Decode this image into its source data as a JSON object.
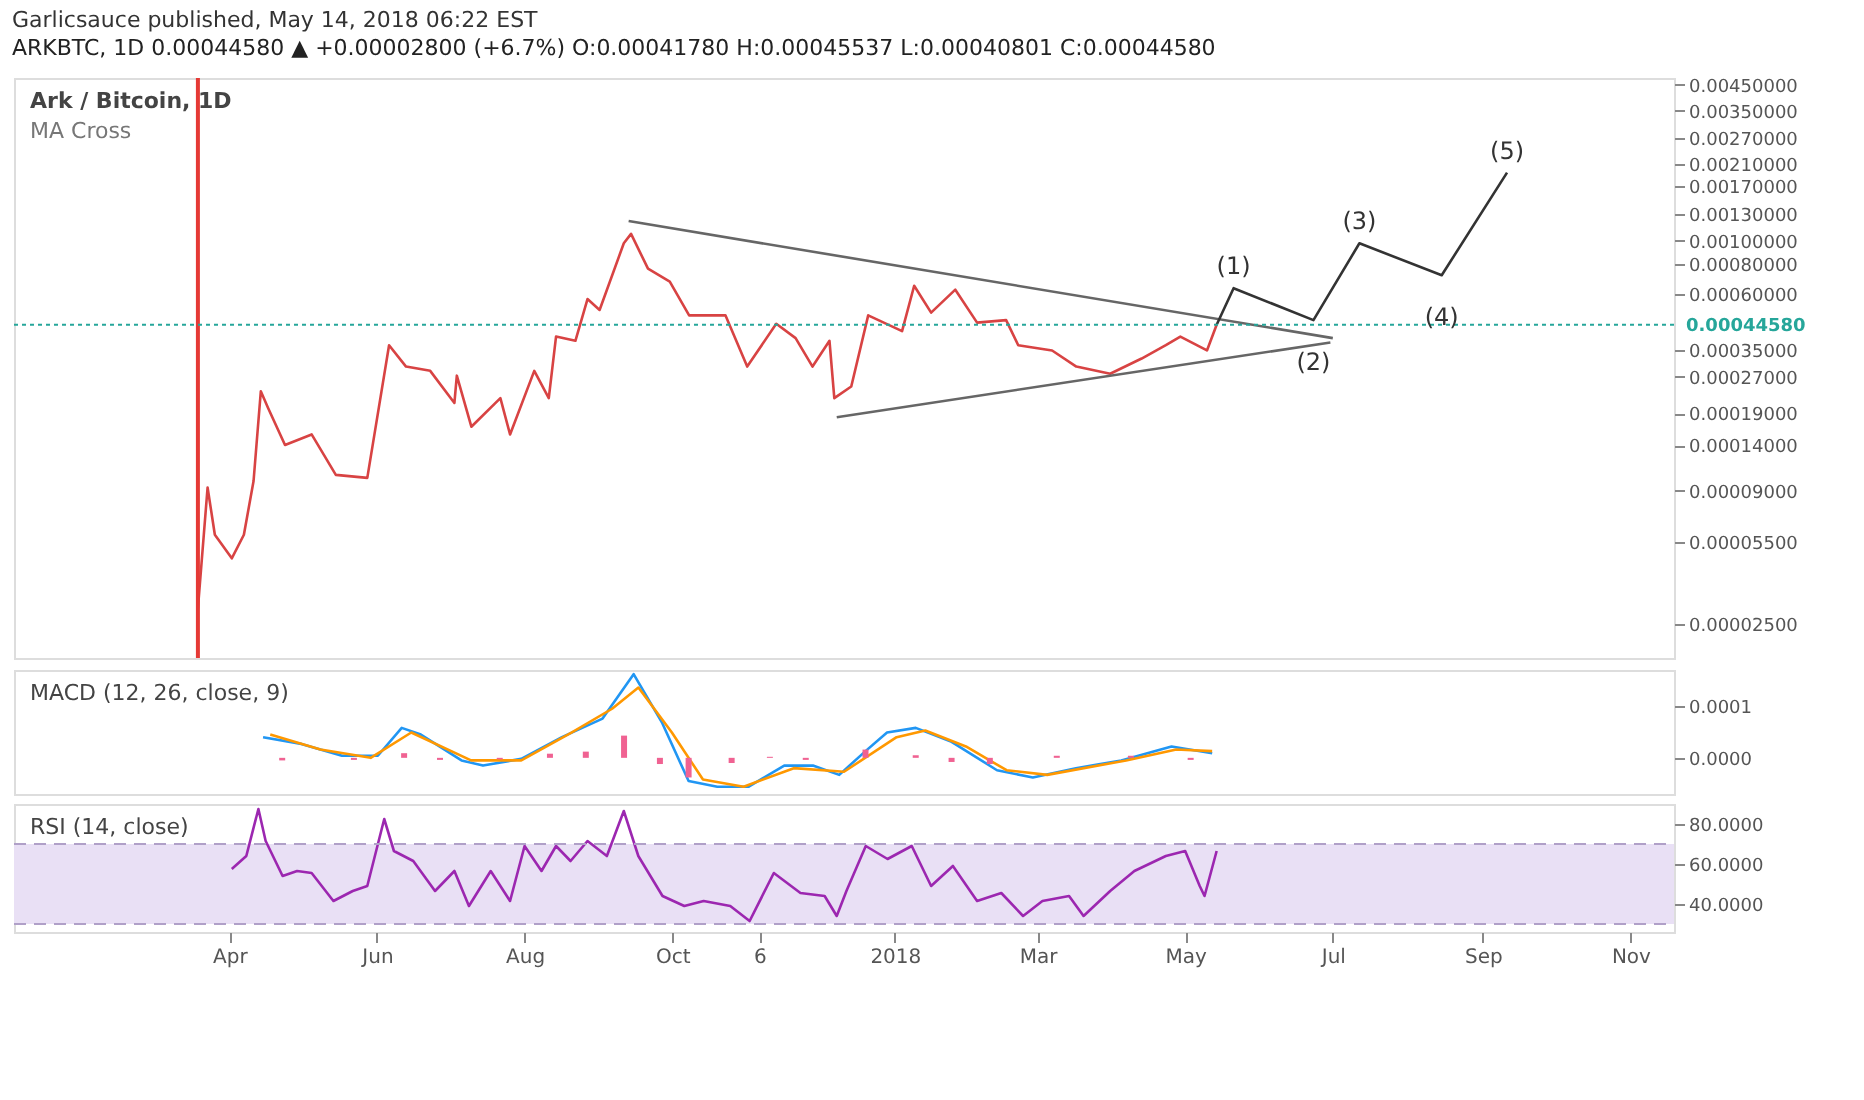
{
  "chart_data": [
    {
      "type": "line",
      "title": "Garlicsauce published, May 14, 2018 06:22 EST",
      "subtitle": "ARKBTC, 1D  0.00044580 ▲ +0.00002800 (+6.7%) O:0.00041780 H:0.00045537 L:0.00040801 C:0.00044580",
      "annotations": [
        "Ark / Bitcoin, 1D",
        "MA Cross",
        {
          "text": "(1)",
          "x": "2018-05-21",
          "y": 0.000634
        },
        {
          "text": "(2)",
          "x": "2018-06-23",
          "y": 0.000466
        },
        {
          "text": "(3)",
          "x": "2018-07-12",
          "y": 0.000977
        },
        {
          "text": "(4)",
          "x": "2018-08-15",
          "y": 0.000718
        },
        {
          "text": "(5)",
          "x": "2018-09-11",
          "y": 0.00193
        }
      ],
      "log": true,
      "tick_labels": "y",
      "xlim": [
        "2017-01-02",
        "2018-11-19"
      ],
      "ylim": [
        1.8e-05,
        0.0048
      ],
      "yticks": [
        {
          "value": 0.0045,
          "label": "0.00450000"
        },
        {
          "value": 0.0035,
          "label": "0.00350000"
        },
        {
          "value": 0.0027,
          "label": "0.00270000"
        },
        {
          "value": 0.0021,
          "label": "0.00210000"
        },
        {
          "value": 0.0017,
          "label": "0.00170000"
        },
        {
          "value": 0.0013,
          "label": "0.00130000"
        },
        {
          "value": 0.001,
          "label": "0.00100000"
        },
        {
          "value": 0.0008,
          "label": "0.00080000"
        },
        {
          "value": 0.0006,
          "label": "0.00060000"
        },
        {
          "value": 0.00035,
          "label": "0.00035000"
        },
        {
          "value": 0.00027,
          "label": "0.00027000"
        },
        {
          "value": 0.00019,
          "label": "0.00019000"
        },
        {
          "value": 0.00014,
          "label": "0.00014000"
        },
        {
          "value": 9e-05,
          "label": "0.00009000"
        },
        {
          "value": 5.5e-05,
          "label": "0.00005500"
        },
        {
          "value": 2.5e-05,
          "label": "0.00002500"
        }
      ],
      "ref_lines": [
        {
          "axis": "x",
          "value": "2017-03-19",
          "color": "#e53935"
        },
        {
          "axis": "y",
          "value": 0.0004458,
          "label": "0.00044580",
          "color": "#26a69a",
          "line_style": "dotted"
        }
      ],
      "series": [
        {
          "color": "#d84343",
          "x": [
            "2017-03-19",
            "2017-03-23",
            "2017-03-26",
            "2017-04-02",
            "2017-04-07",
            "2017-04-11",
            "2017-04-14",
            "2017-04-17",
            "2017-04-24",
            "2017-05-05",
            "2017-05-15",
            "2017-05-28",
            "2017-06-06",
            "2017-06-13",
            "2017-06-23",
            "2017-07-03",
            "2017-07-04",
            "2017-07-10",
            "2017-07-22",
            "2017-07-26",
            "2017-08-05",
            "2017-08-11",
            "2017-08-14",
            "2017-08-22",
            "2017-08-27",
            "2017-09-01",
            "2017-09-11",
            "2017-09-14",
            "2017-09-21",
            "2017-09-30",
            "2017-10-08",
            "2017-10-23",
            "2017-11-01",
            "2017-11-13",
            "2017-11-21",
            "2017-11-28",
            "2017-12-05",
            "2017-12-07",
            "2017-12-14",
            "2017-12-21",
            "2018-01-04",
            "2018-01-09",
            "2018-01-16",
            "2018-01-26",
            "2018-02-04",
            "2018-02-16",
            "2018-02-21",
            "2018-03-07",
            "2018-03-17",
            "2018-03-31",
            "2018-04-13",
            "2018-04-23",
            "2018-04-29",
            "2018-05-10",
            "2018-05-14"
          ],
          "values": [
            2.9e-05,
            9.3e-05,
            5.9e-05,
            4.7e-05,
            5.9e-05,
            9.9e-05,
            0.000235,
            0.0002,
            0.00014,
            0.000155,
            0.000105,
            0.000102,
            0.000366,
            0.000298,
            0.000286,
            0.00021,
            0.000273,
            0.000167,
            0.00022,
            0.000155,
            0.000286,
            0.00022,
            0.000398,
            0.000382,
            0.000571,
            0.000514,
            0.000977,
            0.00107,
            0.000765,
            0.000675,
            0.000488,
            0.000488,
            0.000298,
            0.00045,
            0.000392,
            0.000298,
            0.000382,
            0.00022,
            0.000246,
            0.000488,
            0.000419,
            0.000649,
            0.000501,
            0.000625,
            0.000455,
            0.000466,
            0.000366,
            0.000348,
            0.000298,
            0.000278,
            0.000322,
            0.000366,
            0.000398,
            0.000348,
            0.0004458
          ]
        },
        {
          "color": "#666666",
          "x": [
            "2017-09-13",
            "2018-07-01"
          ],
          "values": [
            0.00121,
            0.000392
          ]
        },
        {
          "color": "#666666",
          "x": [
            "2017-12-08",
            "2018-06-30"
          ],
          "values": [
            0.000183,
            0.000376
          ]
        },
        {
          "color": "#333333",
          "x": [
            "2018-05-14",
            "2018-05-21",
            "2018-06-23",
            "2018-07-12",
            "2018-08-15",
            "2018-09-11"
          ],
          "values": [
            0.0004458,
            0.000634,
            0.000466,
            0.000977,
            0.000718,
            0.00193
          ]
        }
      ]
    },
    {
      "type": "line",
      "annotations": [
        "MACD (12, 26, close, 9)"
      ],
      "tick_labels": "y",
      "xlim": [
        "2017-01-02",
        "2018-11-19"
      ],
      "ylim": [
        -7e-05,
        0.00017
      ],
      "yticks": [
        {
          "value": 0.0001,
          "label": "0.0001"
        },
        {
          "value": 0,
          "label": "0.0000"
        }
      ],
      "series": [
        {
          "type": "bar",
          "color": "#f06292",
          "x": [
            "2017-04-20",
            "2017-05-20",
            "2017-06-10",
            "2017-06-25",
            "2017-07-20",
            "2017-08-10",
            "2017-08-25",
            "2017-09-10",
            "2017-09-25",
            "2017-10-07",
            "2017-10-25",
            "2017-11-10",
            "2017-11-25",
            "2017-12-20",
            "2018-01-10",
            "2018-01-25",
            "2018-02-10",
            "2018-03-10",
            "2018-04-10",
            "2018-05-05"
          ],
          "values": [
            -5e-06,
            -4e-06,
            9e-06,
            -4e-06,
            -3e-06,
            8e-06,
            1.2e-05,
            4.3e-05,
            -1.2e-05,
            -3.8e-05,
            -1e-05,
            2e-06,
            -4e-06,
            1.6e-05,
            5e-06,
            -8e-06,
            -1.2e-05,
            4e-06,
            4e-06,
            -4e-06
          ]
        },
        {
          "color": "#2196f3",
          "x": [
            "2017-04-12",
            "2017-04-28",
            "2017-05-15",
            "2017-05-30",
            "2017-06-09",
            "2017-06-17",
            "2017-07-04",
            "2017-07-13",
            "2017-07-29",
            "2017-08-15",
            "2017-09-01",
            "2017-09-14",
            "2017-09-26",
            "2017-10-07",
            "2017-10-19",
            "2017-11-01",
            "2017-11-16",
            "2017-11-28",
            "2017-12-09",
            "2017-12-20",
            "2017-12-29",
            "2018-01-10",
            "2018-01-25",
            "2018-02-13",
            "2018-02-28",
            "2018-03-18",
            "2018-04-06",
            "2018-04-27",
            "2018-05-14"
          ],
          "values": [
            4e-05,
            2.7e-05,
            4e-06,
            4e-06,
            5.8e-05,
            4.5e-05,
            -5e-06,
            -1.5e-05,
            -2e-06,
            4e-05,
            7.6e-05,
            0.000162,
            6.7e-05,
            -4.5e-05,
            -5.6e-05,
            -5.6e-05,
            -1.5e-05,
            -1.5e-05,
            -3.3e-05,
            1.3e-05,
            4.9e-05,
            5.8e-05,
            3.1e-05,
            -2.4e-05,
            -3.8e-05,
            -2e-05,
            -5e-06,
            2.2e-05,
            9e-06
          ]
        },
        {
          "color": "#ff9800",
          "x": [
            "2017-04-15",
            "2017-05-06",
            "2017-05-27",
            "2017-06-13",
            "2017-07-08",
            "2017-07-29",
            "2017-08-19",
            "2017-09-05",
            "2017-09-16",
            "2017-09-30",
            "2017-10-13",
            "2017-10-30",
            "2017-11-20",
            "2017-12-11",
            "2018-01-02",
            "2018-01-14",
            "2018-01-31",
            "2018-02-17",
            "2018-03-06",
            "2018-04-08",
            "2018-04-29",
            "2018-05-14"
          ],
          "values": [
            4.5e-05,
            1.6e-05,
            0,
            4.9e-05,
            -5e-06,
            -5e-06,
            4.9e-05,
            9.5e-05,
            0.000136,
            4.9e-05,
            -4.2e-05,
            -5.6e-05,
            -2e-05,
            -2.7e-05,
            4e-05,
            5.3e-05,
            2.2e-05,
            -2.4e-05,
            -3.3e-05,
            -5e-06,
            1.6e-05,
            1.3e-05
          ]
        }
      ]
    },
    {
      "type": "line",
      "annotations": [
        "RSI (14, close)"
      ],
      "xlim": [
        "2017-01-02",
        "2018-11-19"
      ],
      "xticks": [
        {
          "value": "2017-04-01",
          "label": "Apr"
        },
        {
          "value": "2017-06-01",
          "label": "Jun"
        },
        {
          "value": "2017-08-01",
          "label": "Aug"
        },
        {
          "value": "2017-10-01",
          "label": "Oct"
        },
        {
          "value": "2017-11-06",
          "label": "6"
        },
        {
          "value": "2018-01-01",
          "label": "2018"
        },
        {
          "value": "2018-03-01",
          "label": "Mar"
        },
        {
          "value": "2018-05-01",
          "label": "May"
        },
        {
          "value": "2018-07-01",
          "label": "Jul"
        },
        {
          "value": "2018-09-01",
          "label": "Sep"
        },
        {
          "value": "2018-11-01",
          "label": "Nov"
        }
      ],
      "ylim": [
        26,
        90
      ],
      "yticks": [
        {
          "value": 80,
          "label": "80.0000"
        },
        {
          "value": 60,
          "label": "60.0000"
        },
        {
          "value": 40,
          "label": "40.0000"
        }
      ],
      "bands": [
        {
          "axis": "y",
          "from": 30,
          "to": 70,
          "color": "#e9e0f5"
        }
      ],
      "ref_lines": [
        {
          "axis": "y",
          "value": 30,
          "color": "#b0a0c8",
          "line_style": "dashed"
        },
        {
          "axis": "y",
          "value": 70,
          "color": "#b0a0c8",
          "line_style": "dashed"
        }
      ],
      "series": [
        {
          "color": "#9c27b0",
          "x": [
            "2017-04-02",
            "2017-04-08",
            "2017-04-13",
            "2017-04-16",
            "2017-04-23",
            "2017-04-29",
            "2017-05-05",
            "2017-05-14",
            "2017-05-22",
            "2017-05-28",
            "2017-06-04",
            "2017-06-08",
            "2017-06-16",
            "2017-06-25",
            "2017-07-03",
            "2017-07-09",
            "2017-07-18",
            "2017-07-26",
            "2017-08-01",
            "2017-08-08",
            "2017-08-14",
            "2017-08-20",
            "2017-08-27",
            "2017-09-04",
            "2017-09-11",
            "2017-09-17",
            "2017-09-27",
            "2017-10-06",
            "2017-10-14",
            "2017-10-25",
            "2017-11-02",
            "2017-11-12",
            "2017-11-23",
            "2017-12-03",
            "2017-12-08",
            "2017-12-12",
            "2017-12-20",
            "2017-12-29",
            "2018-01-08",
            "2018-01-16",
            "2018-01-25",
            "2018-02-04",
            "2018-02-14",
            "2018-02-23",
            "2018-03-03",
            "2018-03-14",
            "2018-03-20",
            "2018-03-31",
            "2018-04-10",
            "2018-04-23",
            "2018-05-01",
            "2018-05-07",
            "2018-05-09",
            "2018-05-14"
          ],
          "values": [
            57.5,
            64,
            87.5,
            71.5,
            54,
            56.5,
            55.5,
            41.5,
            46.5,
            49,
            82.5,
            66.5,
            61.5,
            46.5,
            56.5,
            39,
            56.5,
            41.5,
            69,
            56.5,
            69,
            61.5,
            71.5,
            64,
            86.5,
            64,
            44,
            39,
            41.5,
            39,
            31.5,
            55.5,
            45.5,
            44,
            34,
            46.5,
            69,
            62.5,
            69,
            49,
            59,
            41.5,
            45.5,
            34,
            41.5,
            44,
            34,
            46.5,
            56.5,
            64,
            66.5,
            49,
            44,
            66.5
          ]
        }
      ]
    }
  ]
}
